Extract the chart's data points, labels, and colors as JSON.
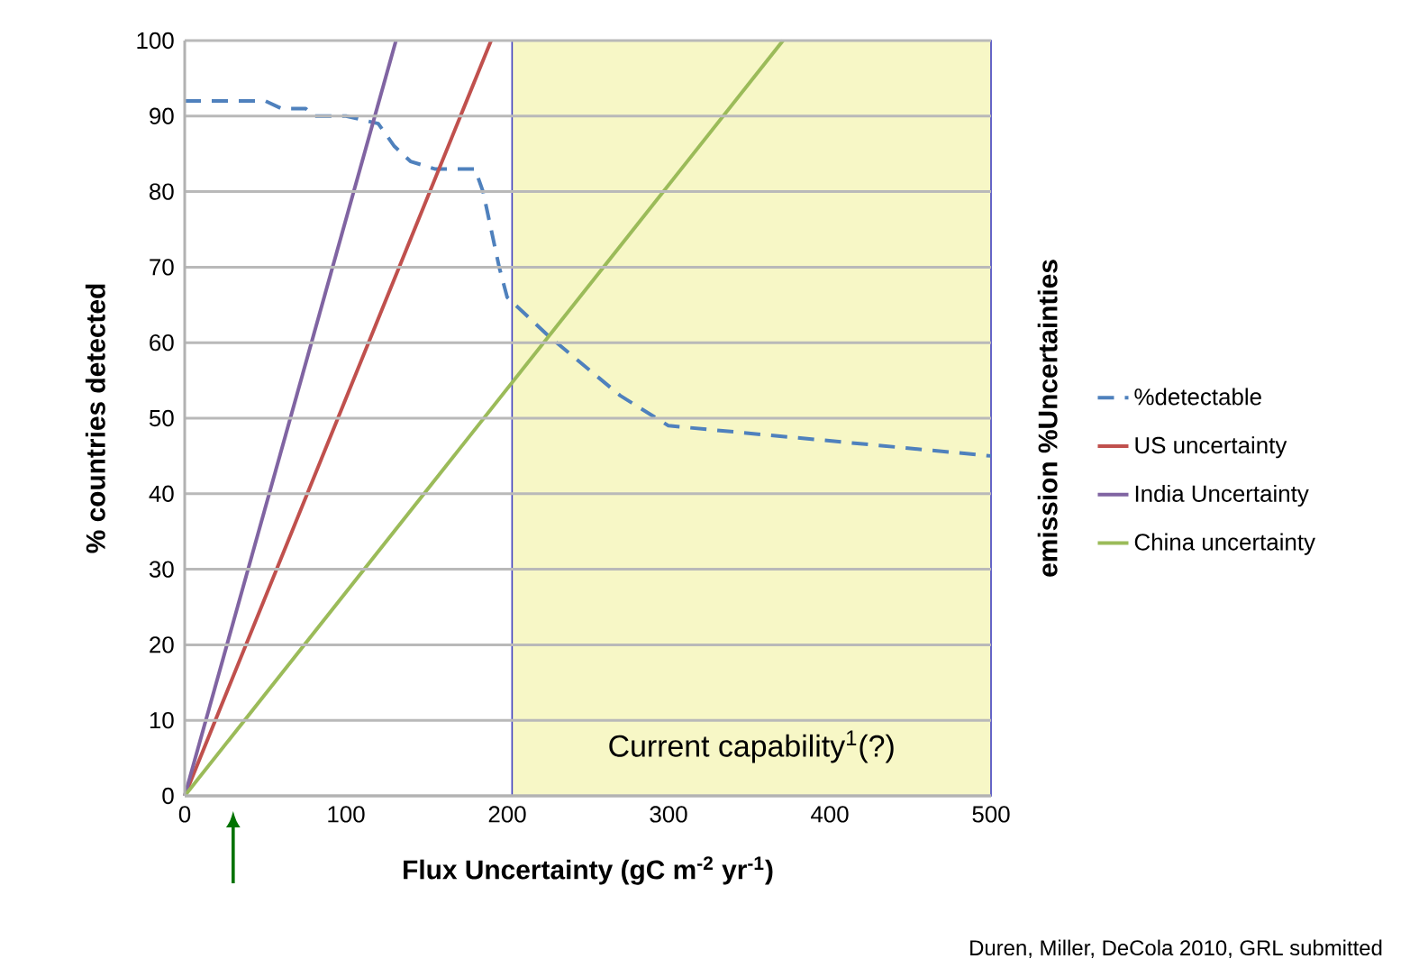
{
  "chart_data": {
    "type": "line",
    "xlabel": "Flux Uncertainty (gC m$^{-2}$ yr$^{-1}$)",
    "ylabel": "% countries detected",
    "y2label": "emission %Uncertainties",
    "xlim": [
      0,
      500
    ],
    "ylim": [
      0,
      100
    ],
    "xticks": [
      0,
      100,
      200,
      300,
      400,
      500
    ],
    "yticks": [
      0,
      10,
      20,
      30,
      40,
      50,
      60,
      70,
      80,
      90,
      100
    ],
    "grid": "y",
    "legend": "right",
    "marker": "none",
    "series": [
      {
        "name": "%detectable",
        "color": "#4f81bd",
        "line_style": "dashed",
        "x": [
          0,
          50,
          60,
          75,
          80,
          100,
          120,
          130,
          140,
          155,
          180,
          185,
          195,
          200,
          225,
          270,
          300,
          400,
          500
        ],
        "values": [
          92,
          92,
          91,
          91,
          90,
          90,
          89,
          86,
          84,
          83,
          83,
          80,
          70,
          66,
          61,
          53,
          49,
          47,
          45
        ]
      },
      {
        "name": "US uncertainty",
        "color": "#c0504d",
        "line_style": "solid",
        "x": [
          0,
          190
        ],
        "values": [
          0,
          100
        ]
      },
      {
        "name": "India Uncertainty",
        "color": "#8064a2",
        "line_style": "solid",
        "x": [
          0,
          131
        ],
        "values": [
          0,
          100
        ]
      },
      {
        "name": "China uncertainty",
        "color": "#9bbb59",
        "line_style": "solid",
        "x": [
          0,
          371
        ],
        "values": [
          0,
          100
        ]
      }
    ],
    "bands": [
      {
        "axis": "x",
        "from": 203,
        "to": 500,
        "label": "Current capability$^{1}$(?)",
        "color": "#f7f7c6"
      }
    ],
    "annotations": [
      "Duren, Miller, DeCola 2010, GRL submitted"
    ]
  }
}
